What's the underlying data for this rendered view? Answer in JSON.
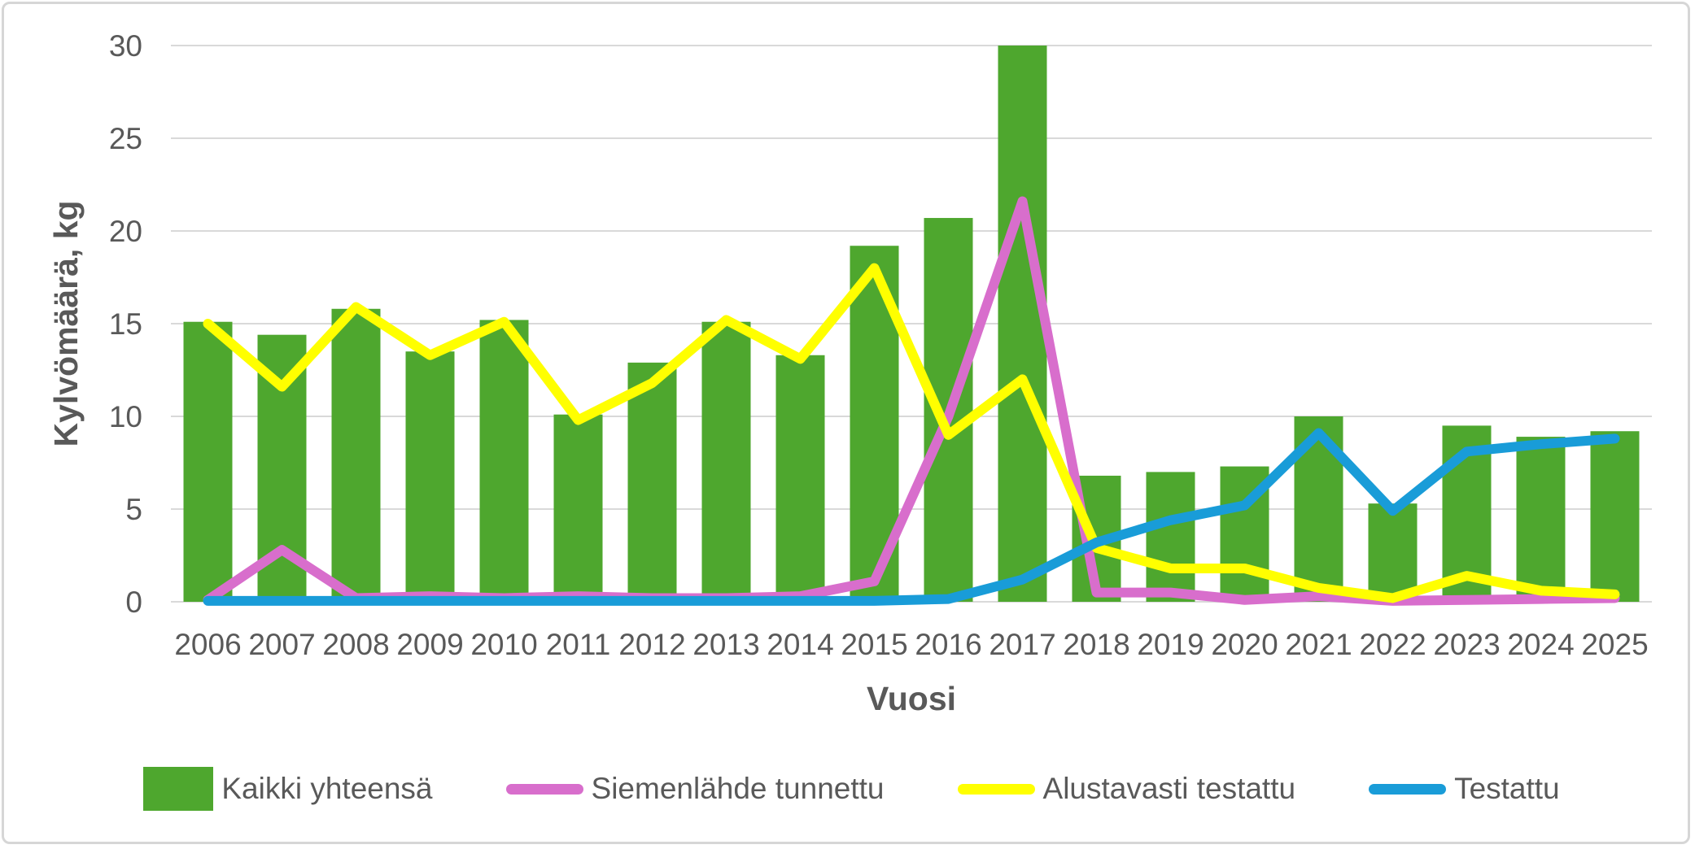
{
  "chart_data": {
    "type": "bar",
    "subtype": "combo-bar-and-lines",
    "title": "",
    "xlabel": "Vuosi",
    "ylabel": "Kylvömäärä, kg",
    "ylim": [
      0,
      30
    ],
    "yticks": [
      0,
      5,
      10,
      15,
      20,
      25,
      30
    ],
    "grid": true,
    "legend_position": "bottom",
    "categories": [
      "2006",
      "2007",
      "2008",
      "2009",
      "2010",
      "2011",
      "2012",
      "2013",
      "2014",
      "2015",
      "2016",
      "2017",
      "2018",
      "2019",
      "2020",
      "2021",
      "2022",
      "2023",
      "2024",
      "2025"
    ],
    "series": [
      {
        "name": "Kaikki yhteensä",
        "type": "bar",
        "color": "#4EA72E",
        "values": [
          15.1,
          14.4,
          15.8,
          13.5,
          15.2,
          10.1,
          12.9,
          15.1,
          13.3,
          19.2,
          20.7,
          30.0,
          6.8,
          7.0,
          7.3,
          10.0,
          5.3,
          9.5,
          8.9,
          9.2
        ]
      },
      {
        "name": "Siemenlähde tunnettu",
        "type": "line",
        "color": "#D86ECC",
        "values": [
          0.1,
          2.8,
          0.2,
          0.3,
          0.2,
          0.3,
          0.2,
          0.2,
          0.3,
          1.1,
          10.0,
          21.6,
          0.5,
          0.5,
          0.1,
          0.3,
          0.05,
          0.1,
          0.15,
          0.2
        ]
      },
      {
        "name": "Alustavasti testattu",
        "type": "line",
        "color": "#FFFF00",
        "values": [
          15.0,
          11.6,
          15.9,
          13.3,
          15.1,
          9.8,
          11.8,
          15.2,
          13.1,
          18.0,
          9.0,
          12.0,
          2.9,
          1.8,
          1.8,
          0.75,
          0.2,
          1.4,
          0.6,
          0.4
        ]
      },
      {
        "name": "Testattu",
        "type": "line",
        "color": "#199CD8",
        "values": [
          0.05,
          0.05,
          0.05,
          0.05,
          0.05,
          0.05,
          0.05,
          0.05,
          0.05,
          0.05,
          0.15,
          1.2,
          3.2,
          4.4,
          5.2,
          9.1,
          4.9,
          8.1,
          8.5,
          8.8
        ]
      }
    ]
  },
  "style": {
    "background": "#FFFFFF",
    "border_color": "#D6D6D6",
    "grid_color": "#D9D9D9",
    "text_color": "#595959"
  }
}
